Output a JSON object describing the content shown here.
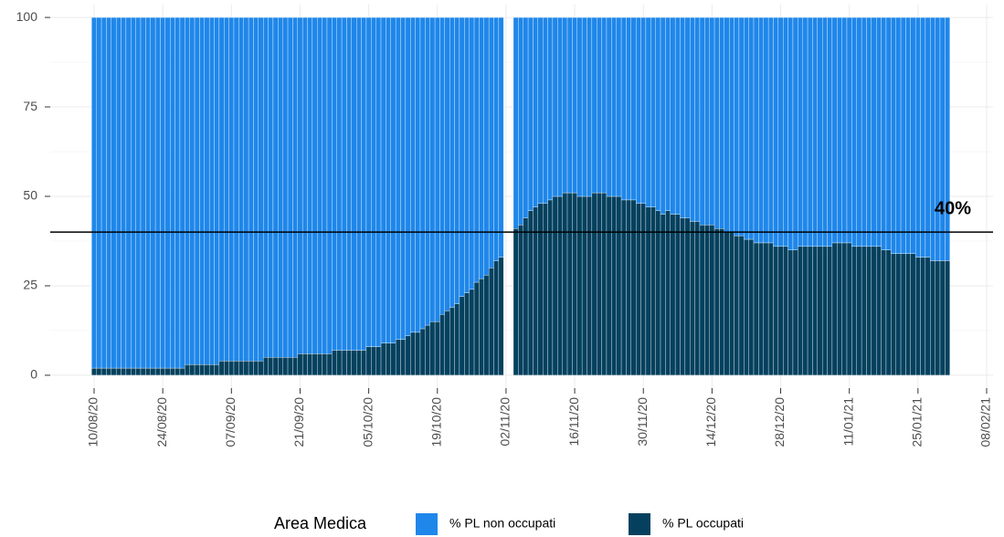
{
  "chart_data": {
    "type": "stacked_bar",
    "categories": [
      "10/08/20",
      null,
      null,
      null,
      null,
      null,
      null,
      null,
      null,
      null,
      null,
      null,
      null,
      null,
      "24/08/20",
      null,
      null,
      null,
      null,
      null,
      null,
      null,
      null,
      null,
      null,
      null,
      null,
      null,
      "07/09/20",
      null,
      null,
      null,
      null,
      null,
      null,
      null,
      null,
      null,
      null,
      null,
      null,
      null,
      "21/09/20",
      null,
      null,
      null,
      null,
      null,
      null,
      null,
      null,
      null,
      null,
      null,
      null,
      null,
      "05/10/20",
      null,
      null,
      null,
      null,
      null,
      null,
      null,
      null,
      null,
      null,
      null,
      null,
      null,
      "19/10/20",
      null,
      null,
      null,
      null,
      null,
      null,
      null,
      null,
      null,
      null,
      null,
      null,
      null,
      "02/11/20",
      null,
      null,
      null,
      null,
      null,
      null,
      null,
      null,
      null,
      null,
      null,
      null,
      null,
      "16/11/20",
      null,
      null,
      null,
      null,
      null,
      null,
      null,
      null,
      null,
      null,
      null,
      null,
      null,
      "30/11/20",
      null,
      null,
      null,
      null,
      null,
      null,
      null,
      null,
      null,
      null,
      null,
      null,
      null,
      "14/12/20",
      null,
      null,
      null,
      null,
      null,
      null,
      null,
      null,
      null,
      null,
      null,
      null,
      null,
      "28/12/20",
      null,
      null,
      null,
      null,
      null,
      null,
      null,
      null,
      null,
      null,
      null,
      null,
      null,
      "11/01/21",
      null,
      null,
      null,
      null,
      null,
      null,
      null,
      null,
      null,
      null,
      null,
      null,
      null,
      "25/01/21",
      null,
      null,
      null,
      null,
      null,
      null,
      null,
      null,
      null,
      null,
      null,
      null,
      null,
      "08/02/21"
    ],
    "series": [
      {
        "name": "% PL occupati",
        "color": "#05415e",
        "values": [
          2,
          2,
          2,
          2,
          2,
          2,
          2,
          2,
          2,
          2,
          2,
          2,
          2,
          2,
          2,
          2,
          2,
          2,
          2,
          3,
          3,
          3,
          3,
          3,
          3,
          3,
          4,
          4,
          4,
          4,
          4,
          4,
          4,
          4,
          4,
          5,
          5,
          5,
          5,
          5,
          5,
          5,
          6,
          6,
          6,
          6,
          6,
          6,
          6,
          7,
          7,
          7,
          7,
          7,
          7,
          7,
          8,
          8,
          8,
          9,
          9,
          9,
          10,
          10,
          11,
          12,
          12,
          13,
          14,
          15,
          15,
          17,
          18,
          19,
          20,
          22,
          23,
          24,
          26,
          27,
          28,
          30,
          32,
          33,
          null,
          null,
          41,
          42,
          44,
          46,
          47,
          48,
          48,
          49,
          50,
          50,
          51,
          51,
          51,
          50,
          50,
          50,
          51,
          51,
          51,
          50,
          50,
          50,
          49,
          49,
          49,
          48,
          48,
          47,
          47,
          46,
          45,
          46,
          45,
          45,
          44,
          44,
          43,
          43,
          42,
          42,
          42,
          41,
          41,
          40,
          40,
          39,
          39,
          38,
          38,
          37,
          37,
          37,
          37,
          36,
          36,
          36,
          35,
          35,
          36,
          36,
          36,
          36,
          36,
          36,
          36,
          37,
          37,
          37,
          37,
          36,
          36,
          36,
          36,
          36,
          36,
          35,
          35,
          34,
          34,
          34,
          34,
          34,
          33,
          33,
          33,
          32,
          32,
          32,
          32,
          null,
          null,
          null,
          null,
          null,
          null,
          null,
          null
        ]
      },
      {
        "name": "% PL non occupati",
        "color": "#1f87ea",
        "values": [
          98,
          98,
          98,
          98,
          98,
          98,
          98,
          98,
          98,
          98,
          98,
          98,
          98,
          98,
          98,
          98,
          98,
          98,
          98,
          97,
          97,
          97,
          97,
          97,
          97,
          97,
          96,
          96,
          96,
          96,
          96,
          96,
          96,
          96,
          96,
          95,
          95,
          95,
          95,
          95,
          95,
          95,
          94,
          94,
          94,
          94,
          94,
          94,
          94,
          93,
          93,
          93,
          93,
          93,
          93,
          93,
          92,
          92,
          92,
          91,
          91,
          91,
          90,
          90,
          89,
          88,
          88,
          87,
          86,
          85,
          85,
          83,
          82,
          81,
          80,
          78,
          77,
          76,
          74,
          73,
          72,
          70,
          68,
          67,
          null,
          null,
          59,
          58,
          56,
          54,
          53,
          52,
          52,
          51,
          50,
          50,
          49,
          49,
          49,
          50,
          50,
          50,
          49,
          49,
          49,
          50,
          50,
          50,
          51,
          51,
          51,
          52,
          52,
          53,
          53,
          54,
          55,
          54,
          55,
          55,
          56,
          56,
          57,
          57,
          58,
          58,
          58,
          59,
          59,
          60,
          60,
          61,
          61,
          62,
          62,
          63,
          63,
          63,
          63,
          64,
          64,
          64,
          65,
          65,
          64,
          64,
          64,
          64,
          64,
          64,
          64,
          63,
          63,
          63,
          63,
          64,
          64,
          64,
          64,
          64,
          64,
          65,
          65,
          66,
          66,
          66,
          66,
          66,
          67,
          67,
          67,
          68,
          68,
          68,
          68,
          null,
          null,
          null,
          null,
          null,
          null,
          null,
          null
        ]
      }
    ],
    "ylim": [
      -3.6,
      103.6
    ],
    "yticks": [
      0,
      25,
      50,
      75,
      100
    ],
    "grid": true,
    "hline": 40,
    "hline_label": "40%",
    "legend_title": "Area Medica",
    "legend_position": "bottom",
    "legend_order": [
      1,
      0
    ]
  }
}
